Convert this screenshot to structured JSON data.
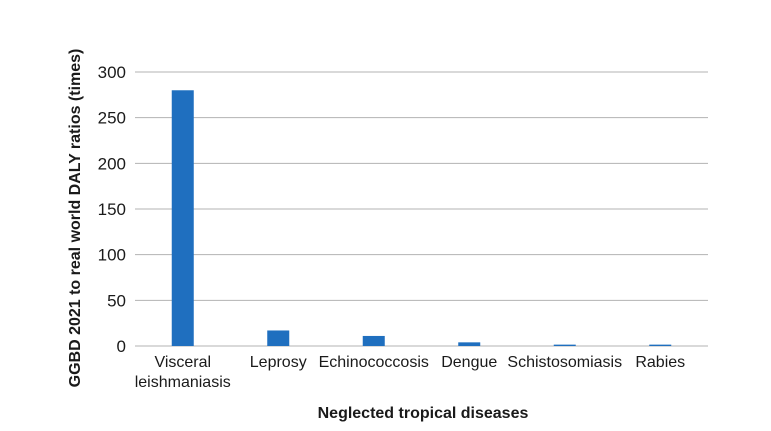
{
  "chart_data": {
    "type": "bar",
    "categories": [
      [
        "Visceral",
        "leishmaniasis"
      ],
      [
        "Leprosy"
      ],
      [
        "Echinococcosis"
      ],
      [
        "Dengue"
      ],
      [
        "Schistosomiasis"
      ],
      [
        "Rabies"
      ]
    ],
    "values": [
      280,
      17,
      11,
      4,
      1.5,
      1.5
    ],
    "xlabel": "Neglected tropical diseases",
    "ylabel": "GGBD 2021 to real world DALY ratios (times)",
    "ylim": [
      0,
      300
    ],
    "yticks": [
      0,
      50,
      100,
      150,
      200,
      250,
      300
    ],
    "grid": true,
    "legend": "none",
    "bar_color": "#1f6fbf",
    "grid_color": "#b3b3b3"
  }
}
